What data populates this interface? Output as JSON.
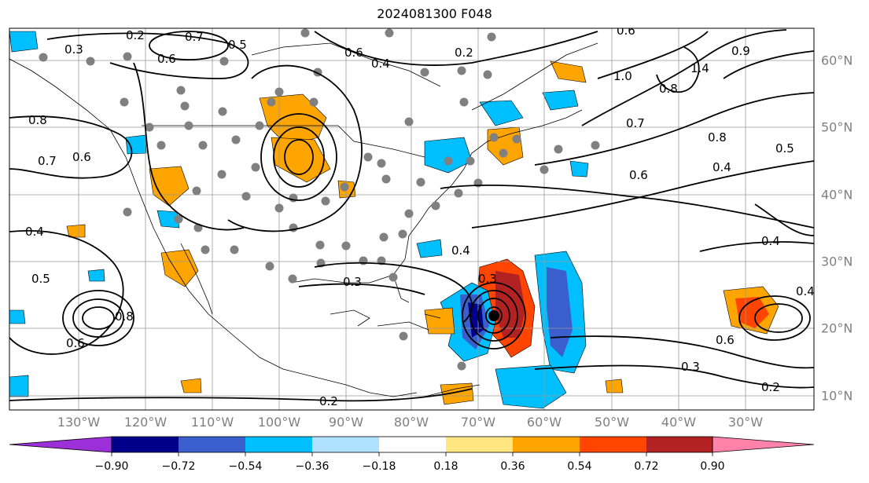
{
  "title": "2024081300 F048",
  "map": {
    "lon_labels": [
      "130°W",
      "120°W",
      "110°W",
      "100°W",
      "90°W",
      "80°W",
      "70°W",
      "60°W",
      "50°W",
      "40°W",
      "30°W"
    ],
    "lat_labels": [
      "60°N",
      "50°N",
      "40°N",
      "30°N",
      "20°N",
      "10°N"
    ],
    "contour_labels": [
      "0.2",
      "0.3",
      "0.5",
      "0.7",
      "0.6",
      "0.4",
      "0.8",
      "0.4",
      "0.7",
      "0.6",
      "0.5",
      "0.6",
      "0.6",
      "0.2",
      "0.3",
      "0.4",
      "0.3",
      "0.2",
      "0.6",
      "1.0",
      "0.8",
      "0.7",
      "0.8",
      "0.5",
      "0.4",
      "0.6",
      "0.4",
      "0.3",
      "0.2",
      "0.4",
      "0.8",
      "0.6",
      "0.9",
      "1.4"
    ],
    "colors": {
      "contour": "#000000",
      "station_dot": "#808080",
      "grid": "#999999",
      "coast": "#000000"
    }
  },
  "colorbar": {
    "tick_labels": [
      "−0.90",
      "−0.72",
      "−0.54",
      "−0.36",
      "−0.18",
      "0.18",
      "0.36",
      "0.54",
      "0.72",
      "0.90"
    ],
    "colors": [
      "#9b30d9",
      "#00008b",
      "#3a5fcd",
      "#00bfff",
      "#b0e2ff",
      "#ffffff",
      "#ffe680",
      "#ffa500",
      "#ff4500",
      "#b22222",
      "#ff82ab"
    ]
  }
}
